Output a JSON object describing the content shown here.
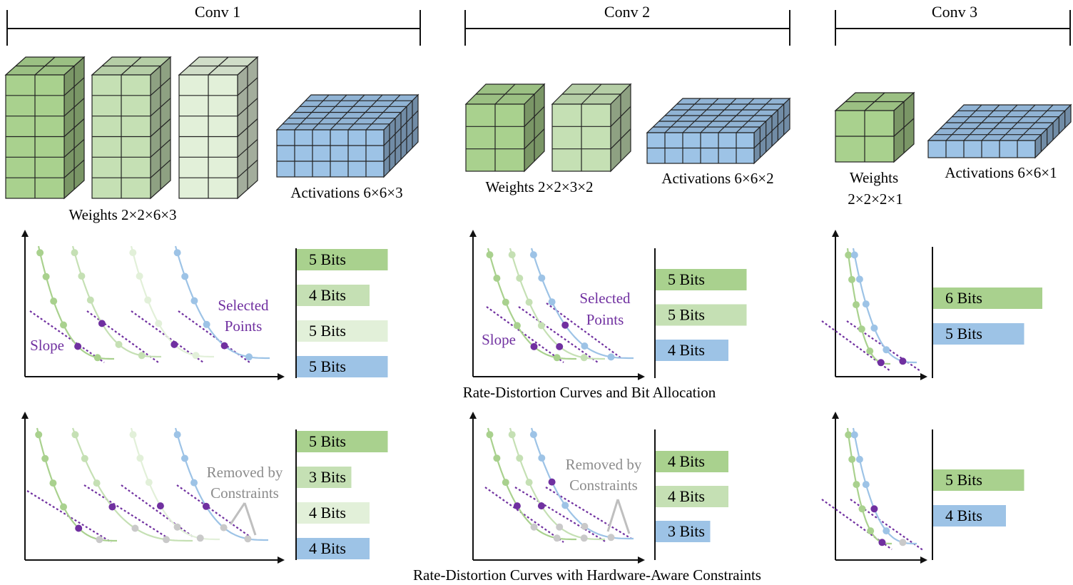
{
  "colors": {
    "green_dark": "#a9d18e",
    "green_mid": "#c5e0b4",
    "green_light": "#e2f0d9",
    "blue": "#9dc3e6",
    "dot_purple": "#7030a0",
    "dot_gray": "#c9c9c9",
    "text_purple": "#7030a0",
    "text_gray": "#8c8c8c"
  },
  "convs": [
    {
      "title": "Conv 1",
      "weights_label": "Weights 2×2×6×3",
      "activations_label": "Activations 6×6×3"
    },
    {
      "title": "Conv 2",
      "weights_label": "Weights 2×2×3×2",
      "activations_label": "Activations 6×6×2"
    },
    {
      "title": "Conv 3",
      "weights_label_line1": "Weights",
      "weights_label_line2": "2×2×2×1",
      "activations_label": "Activations 6×6×1"
    }
  ],
  "annotations": {
    "slope": "Slope",
    "selected_line1": "Selected",
    "selected_line2": "Points",
    "removed_line1": "Removed by",
    "removed_line2": "Constraints"
  },
  "row_titles": {
    "rd": "Rate-Distortion Curves and Bit Allocation",
    "hw": "Rate-Distortion Curves with Hardware-Aware Constraints"
  },
  "bits": {
    "rd": {
      "conv1": [
        {
          "label": "5 Bits",
          "bits": 5,
          "color": "green_dark"
        },
        {
          "label": "4 Bits",
          "bits": 4,
          "color": "green_mid"
        },
        {
          "label": "5 Bits",
          "bits": 5,
          "color": "green_light"
        },
        {
          "label": "5 Bits",
          "bits": 5,
          "color": "blue"
        }
      ],
      "conv2": [
        {
          "label": "5 Bits",
          "bits": 5,
          "color": "green_dark"
        },
        {
          "label": "5 Bits",
          "bits": 5,
          "color": "green_mid"
        },
        {
          "label": "4 Bits",
          "bits": 4,
          "color": "blue"
        }
      ],
      "conv3": [
        {
          "label": "6 Bits",
          "bits": 6,
          "color": "green_dark"
        },
        {
          "label": "5 Bits",
          "bits": 5,
          "color": "blue"
        }
      ]
    },
    "hw": {
      "conv1": [
        {
          "label": "5 Bits",
          "bits": 5,
          "color": "green_dark"
        },
        {
          "label": "3 Bits",
          "bits": 3,
          "color": "green_mid"
        },
        {
          "label": "4 Bits",
          "bits": 4,
          "color": "green_light"
        },
        {
          "label": "4 Bits",
          "bits": 4,
          "color": "blue"
        }
      ],
      "conv2": [
        {
          "label": "4 Bits",
          "bits": 4,
          "color": "green_dark"
        },
        {
          "label": "4 Bits",
          "bits": 4,
          "color": "green_mid"
        },
        {
          "label": "3 Bits",
          "bits": 3,
          "color": "blue"
        }
      ],
      "conv3": [
        {
          "label": "5 Bits",
          "bits": 5,
          "color": "green_dark"
        },
        {
          "label": "4 Bits",
          "bits": 4,
          "color": "blue"
        }
      ]
    }
  }
}
